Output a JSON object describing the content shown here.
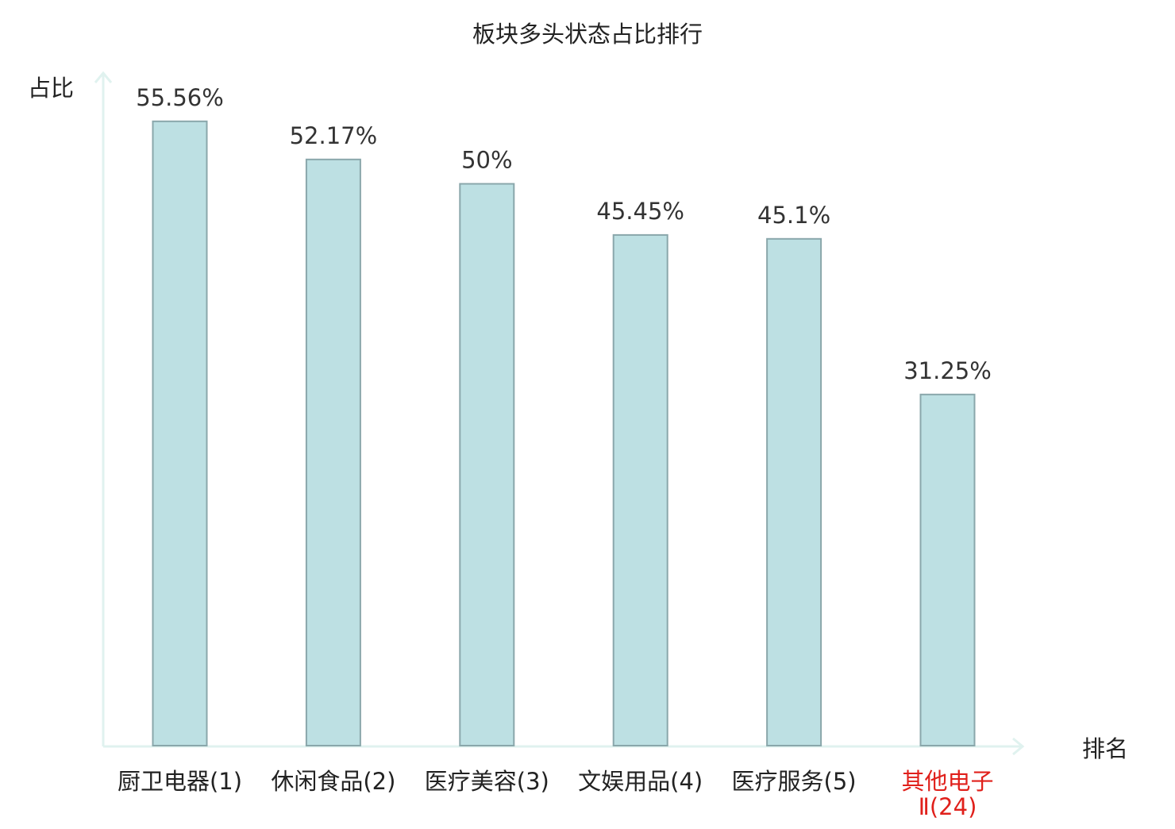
{
  "chart_data": {
    "type": "bar",
    "title": "板块多头状态占比排行",
    "ylabel": "占比",
    "xlabel": "排名",
    "categories": [
      [
        "厨卫电器(1)"
      ],
      [
        "休闲食品(2)"
      ],
      [
        "医疗美容(3)"
      ],
      [
        "文娱用品(4)"
      ],
      [
        "医疗服务(5)"
      ],
      [
        "其他电子",
        "Ⅱ(24)"
      ]
    ],
    "values": [
      55.56,
      52.17,
      50,
      45.45,
      45.1,
      31.25
    ],
    "value_labels": [
      "55.56%",
      "52.17%",
      "50%",
      "45.45%",
      "45.1%",
      "31.25%"
    ],
    "highlight_index": 5,
    "ylim": [
      0,
      60
    ],
    "grid": false,
    "colors": {
      "bar_fill": "#bde0e3",
      "bar_stroke": "#8aa7ab",
      "axis": "#e0f2ef",
      "text": "#222222",
      "value_label": "#333333",
      "highlight": "#e0201b"
    }
  }
}
